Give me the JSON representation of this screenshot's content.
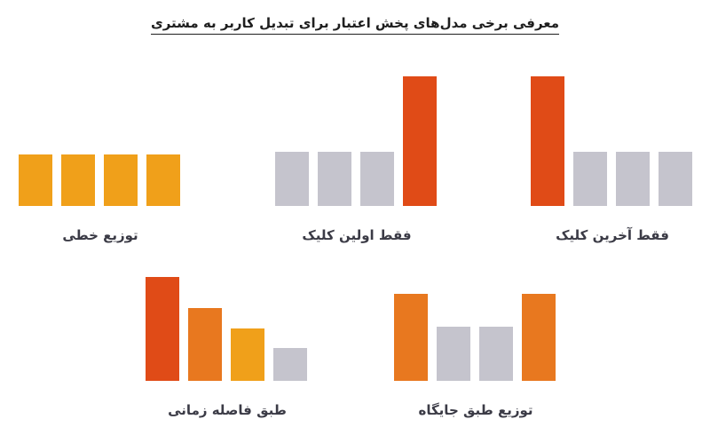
{
  "title": "معرفی برخی مدل‌های پخش اعتبار برای تبدیل کاربر به مشتری",
  "colors": {
    "red_orange": "#e04b17",
    "orange": "#e8781f",
    "amber": "#f0a01a",
    "gray": "#c5c4cd"
  },
  "models": [
    {
      "label": "فقط آخرین کلیک",
      "bars": [
        {
          "value": 1.0,
          "color": "red_orange"
        },
        {
          "value": 0.42,
          "color": "gray"
        },
        {
          "value": 0.42,
          "color": "gray"
        },
        {
          "value": 0.42,
          "color": "gray"
        }
      ]
    },
    {
      "label": "فقط اولین کلیک",
      "bars": [
        {
          "value": 0.42,
          "color": "gray"
        },
        {
          "value": 0.42,
          "color": "gray"
        },
        {
          "value": 0.42,
          "color": "gray"
        },
        {
          "value": 1.0,
          "color": "red_orange"
        }
      ]
    },
    {
      "label": "توزیع خطی",
      "bars": [
        {
          "value": 0.4,
          "color": "amber"
        },
        {
          "value": 0.4,
          "color": "amber"
        },
        {
          "value": 0.4,
          "color": "amber"
        },
        {
          "value": 0.4,
          "color": "amber"
        }
      ]
    },
    {
      "label": "توزیع طبق جایگاه",
      "bars": [
        {
          "value": 0.84,
          "color": "orange"
        },
        {
          "value": 0.52,
          "color": "gray"
        },
        {
          "value": 0.52,
          "color": "gray"
        },
        {
          "value": 0.84,
          "color": "orange"
        }
      ]
    },
    {
      "label": "طبق فاصله زمانی",
      "bars": [
        {
          "value": 1.0,
          "color": "red_orange"
        },
        {
          "value": 0.7,
          "color": "orange"
        },
        {
          "value": 0.5,
          "color": "amber"
        },
        {
          "value": 0.32,
          "color": "gray"
        }
      ]
    }
  ]
}
